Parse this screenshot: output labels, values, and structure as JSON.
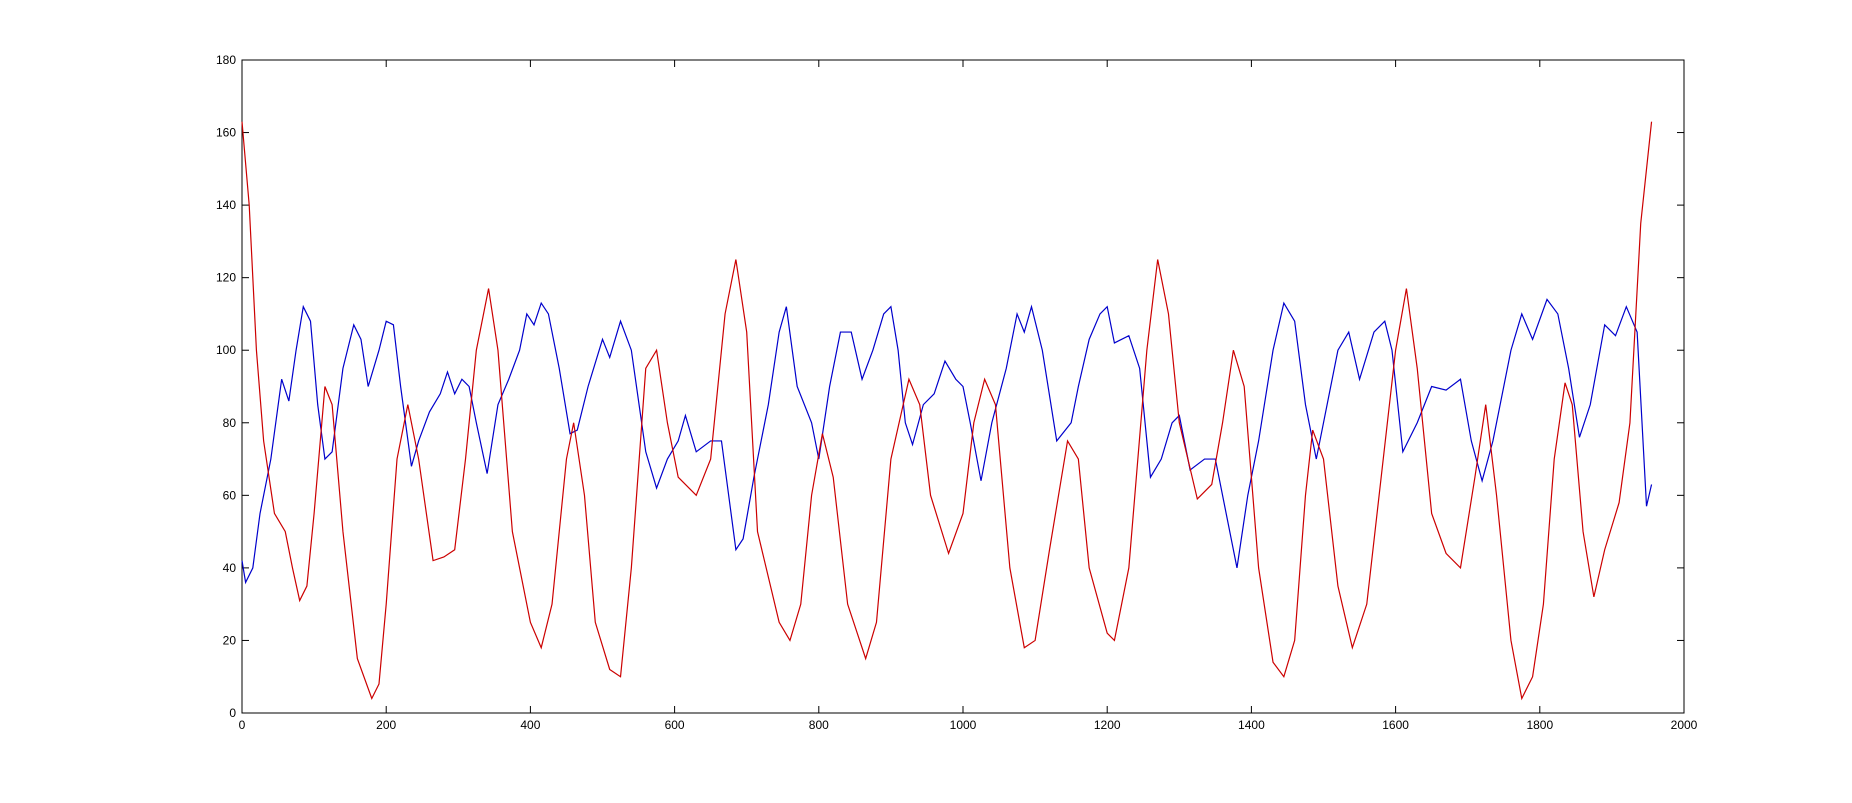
{
  "chart_data": {
    "type": "line",
    "xlim": [
      0,
      2000
    ],
    "xticks": [
      0,
      200,
      400,
      600,
      800,
      1000,
      1200,
      1400,
      1600,
      1800,
      2000
    ],
    "ylim": [
      0,
      180
    ],
    "yticks": [
      0,
      20,
      40,
      60,
      80,
      100,
      120,
      140,
      160,
      180
    ],
    "series": [
      {
        "color": "#0000cc",
        "x": [
          0,
          5,
          15,
          25,
          40,
          55,
          65,
          75,
          85,
          95,
          105,
          115,
          125,
          140,
          155,
          165,
          175,
          190,
          200,
          210,
          220,
          235,
          245,
          260,
          275,
          285,
          295,
          305,
          315,
          325,
          340,
          355,
          370,
          385,
          395,
          405,
          415,
          425,
          440,
          455,
          465,
          480,
          500,
          510,
          525,
          540,
          560,
          575,
          590,
          605,
          615,
          630,
          650,
          665,
          685,
          695,
          710,
          730,
          745,
          755,
          770,
          790,
          800,
          815,
          830,
          845,
          860,
          875,
          890,
          900,
          910,
          920,
          930,
          945,
          960,
          975,
          990,
          1000,
          1010,
          1025,
          1040,
          1060,
          1075,
          1085,
          1095,
          1110,
          1130,
          1150,
          1160,
          1175,
          1190,
          1200,
          1210,
          1230,
          1245,
          1260,
          1275,
          1290,
          1300,
          1315,
          1335,
          1350,
          1365,
          1380,
          1395,
          1410,
          1430,
          1445,
          1460,
          1475,
          1490,
          1505,
          1520,
          1535,
          1550,
          1570,
          1585,
          1595,
          1610,
          1630,
          1650,
          1670,
          1690,
          1705,
          1720,
          1735,
          1760,
          1775,
          1790,
          1810,
          1825,
          1840,
          1855,
          1870,
          1890,
          1905,
          1920,
          1935,
          1948,
          1955
        ],
        "values": [
          42,
          36,
          40,
          55,
          70,
          92,
          86,
          100,
          112,
          108,
          85,
          70,
          72,
          95,
          107,
          103,
          90,
          100,
          108,
          107,
          90,
          68,
          75,
          83,
          88,
          94,
          88,
          92,
          90,
          80,
          66,
          85,
          92,
          100,
          110,
          107,
          113,
          110,
          95,
          77,
          78,
          90,
          103,
          98,
          108,
          100,
          72,
          62,
          70,
          75,
          82,
          72,
          75,
          75,
          45,
          48,
          65,
          85,
          105,
          112,
          90,
          80,
          70,
          90,
          105,
          105,
          92,
          100,
          110,
          112,
          100,
          80,
          74,
          85,
          88,
          97,
          92,
          90,
          80,
          64,
          80,
          95,
          110,
          105,
          112,
          100,
          75,
          80,
          90,
          103,
          110,
          112,
          102,
          104,
          95,
          65,
          70,
          80,
          82,
          67,
          70,
          70,
          55,
          40,
          60,
          75,
          100,
          113,
          108,
          85,
          70,
          85,
          100,
          105,
          92,
          105,
          108,
          100,
          72,
          80,
          90,
          89,
          92,
          75,
          64,
          75,
          100,
          110,
          103,
          114,
          110,
          95,
          76,
          85,
          107,
          104,
          112,
          105,
          57,
          63
        ]
      },
      {
        "color": "#cc0000",
        "x": [
          0,
          10,
          20,
          30,
          45,
          60,
          70,
          80,
          90,
          100,
          115,
          125,
          140,
          160,
          180,
          190,
          200,
          215,
          230,
          245,
          265,
          280,
          295,
          310,
          325,
          342,
          355,
          375,
          400,
          415,
          430,
          450,
          460,
          475,
          490,
          510,
          525,
          540,
          560,
          575,
          590,
          605,
          630,
          650,
          670,
          685,
          700,
          715,
          745,
          760,
          775,
          790,
          805,
          820,
          840,
          865,
          880,
          900,
          925,
          940,
          955,
          980,
          1000,
          1015,
          1030,
          1045,
          1065,
          1085,
          1100,
          1120,
          1145,
          1160,
          1175,
          1200,
          1210,
          1230,
          1255,
          1270,
          1285,
          1300,
          1325,
          1345,
          1360,
          1375,
          1390,
          1410,
          1430,
          1445,
          1460,
          1475,
          1485,
          1500,
          1520,
          1540,
          1560,
          1580,
          1600,
          1615,
          1630,
          1650,
          1670,
          1690,
          1710,
          1725,
          1740,
          1760,
          1775,
          1790,
          1805,
          1820,
          1835,
          1845,
          1860,
          1875,
          1890,
          1910,
          1925,
          1940,
          1955
        ],
        "values": [
          163,
          140,
          100,
          75,
          55,
          50,
          40,
          31,
          35,
          55,
          90,
          85,
          50,
          15,
          4,
          8,
          30,
          70,
          85,
          70,
          42,
          43,
          45,
          70,
          100,
          117,
          100,
          50,
          25,
          18,
          30,
          70,
          80,
          60,
          25,
          12,
          10,
          40,
          95,
          100,
          80,
          65,
          60,
          70,
          110,
          125,
          105,
          50,
          25,
          20,
          30,
          60,
          77,
          65,
          30,
          15,
          25,
          70,
          92,
          85,
          60,
          44,
          55,
          80,
          92,
          85,
          40,
          18,
          20,
          45,
          75,
          70,
          40,
          22,
          20,
          40,
          100,
          125,
          110,
          80,
          59,
          63,
          80,
          100,
          90,
          40,
          14,
          10,
          20,
          60,
          78,
          70,
          35,
          18,
          30,
          65,
          100,
          117,
          95,
          55,
          44,
          40,
          65,
          85,
          60,
          20,
          4,
          10,
          30,
          70,
          91,
          85,
          50,
          32,
          45,
          58,
          80,
          135,
          163
        ]
      }
    ]
  }
}
